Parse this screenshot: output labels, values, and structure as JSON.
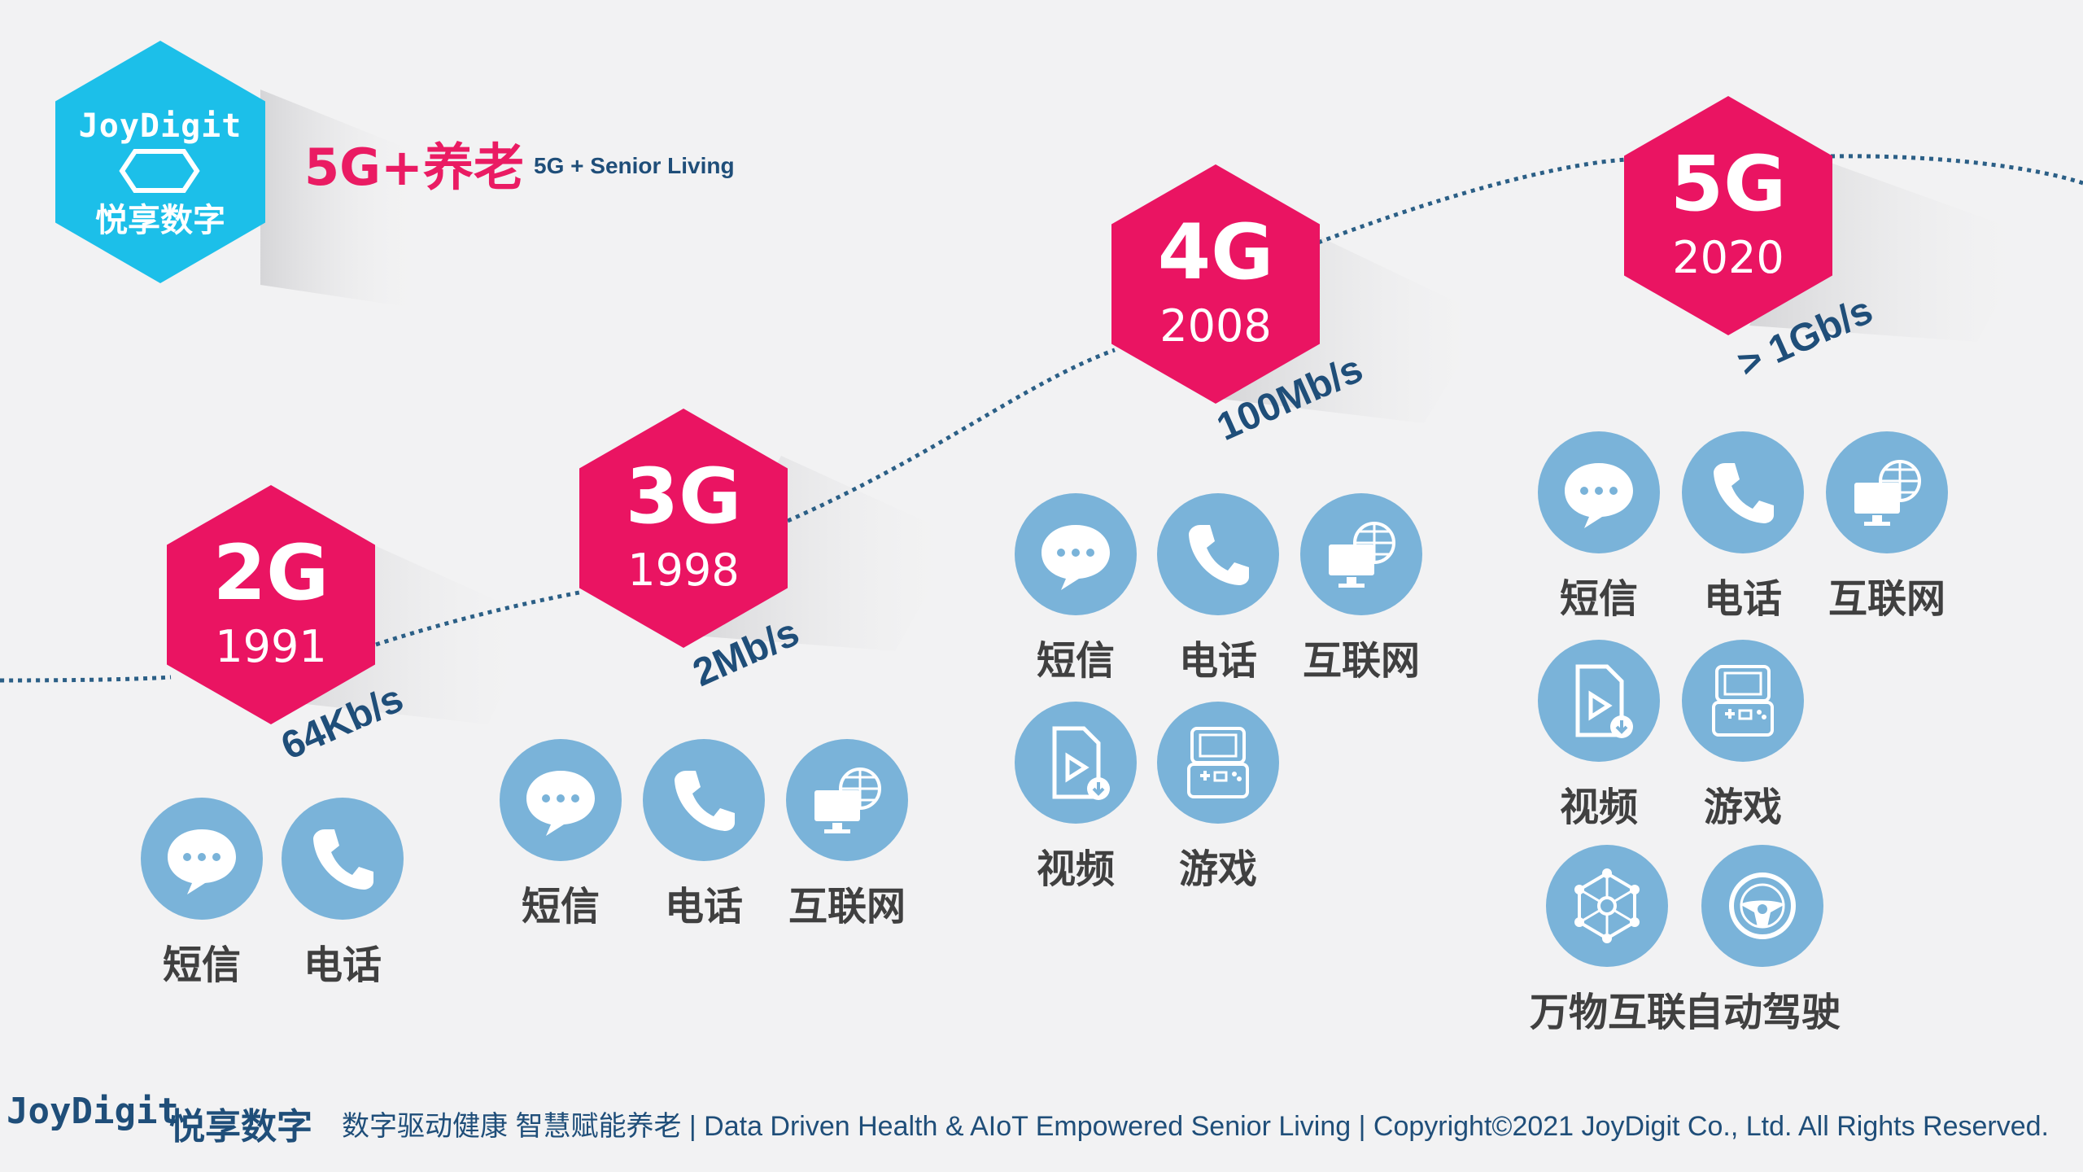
{
  "header": {
    "logo_en": "JoyDigit",
    "logo_cn": "悦享数字",
    "title": "5G+养老",
    "subtitle": "5G + Senior Living"
  },
  "generations": [
    {
      "name": "2G",
      "year": "1991",
      "speed": "64Kb/s",
      "features": [
        "短信",
        "电话"
      ]
    },
    {
      "name": "3G",
      "year": "1998",
      "speed": "2Mb/s",
      "features": [
        "短信",
        "电话",
        "互联网"
      ]
    },
    {
      "name": "4G",
      "year": "2008",
      "speed": "100Mb/s",
      "features": [
        "短信",
        "电话",
        "互联网",
        "视频",
        "游戏"
      ]
    },
    {
      "name": "5G",
      "year": "2020",
      "speed": "> 1Gb/s",
      "features": [
        "短信",
        "电话",
        "互联网",
        "视频",
        "游戏",
        "万物互联",
        "自动驾驶"
      ]
    }
  ],
  "icons": {
    "短信": "chat-bubble-icon",
    "电话": "phone-icon",
    "互联网": "globe-monitor-icon",
    "视频": "video-file-icon",
    "游戏": "game-console-icon",
    "万物互联": "network-icon",
    "自动驾驶": "steering-wheel-icon"
  },
  "colors": {
    "hexagon": "#ea1462",
    "logo": "#1cbfe9",
    "icon_circle": "#7ab3d9",
    "speed_text": "#1f4e79",
    "curve": "#2b5f86"
  },
  "footer": {
    "logo_en": "JoyDigit",
    "logo_cn": "悦享数字",
    "text": "数字驱动健康  智慧赋能养老  | Data Driven Health & AIoT Empowered Senior Living  | Copyright©2021 JoyDigit Co., Ltd. All Rights Reserved."
  }
}
